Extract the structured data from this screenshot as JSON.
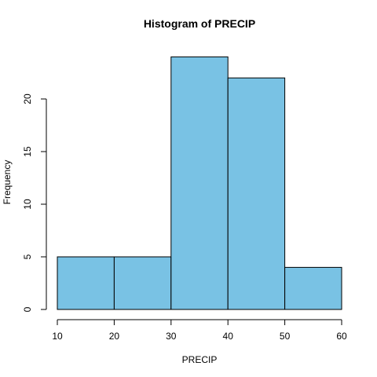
{
  "chart_data": {
    "type": "bar",
    "title": "Histogram of PRECIP",
    "xlabel": "PRECIP",
    "ylabel": "Frequency",
    "bins": [
      {
        "start": 10,
        "end": 20,
        "count": 5
      },
      {
        "start": 20,
        "end": 30,
        "count": 5
      },
      {
        "start": 30,
        "end": 40,
        "count": 24
      },
      {
        "start": 40,
        "end": 50,
        "count": 22
      },
      {
        "start": 50,
        "end": 60,
        "count": 4
      }
    ],
    "xlim": [
      10,
      60
    ],
    "ylim": [
      0,
      25
    ],
    "x_ticks": [
      10,
      20,
      30,
      40,
      50,
      60
    ],
    "y_ticks": [
      0,
      5,
      10,
      15,
      20
    ],
    "bar_color": "#79c2e4",
    "grid": false,
    "legend": "none"
  }
}
